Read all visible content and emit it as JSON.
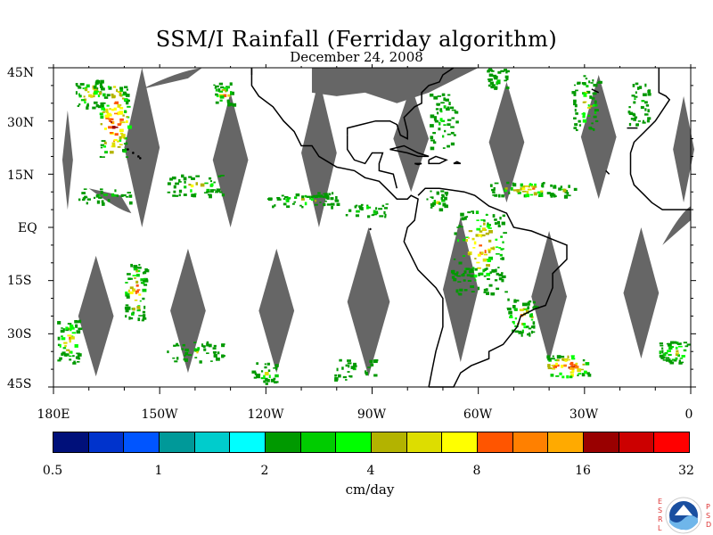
{
  "title": "SSM/I Rainfall (Ferriday algorithm)",
  "date": "December 24, 2008",
  "axes": {
    "lat_labels": [
      "45N",
      "30N",
      "15N",
      "EQ",
      "15S",
      "30S",
      "45S"
    ],
    "lon_labels": [
      "180E",
      "150W",
      "120W",
      "90W",
      "60W",
      "30W",
      "0"
    ]
  },
  "colorbar": {
    "units": "cm/day",
    "tick_labels": [
      "0.5",
      "1",
      "2",
      "4",
      "8",
      "16",
      "32"
    ],
    "colors": [
      "#00107a",
      "#0033cc",
      "#0055ff",
      "#009999",
      "#00cccc",
      "#00ffff",
      "#009900",
      "#00cc00",
      "#00ff00",
      "#b3b300",
      "#dddd00",
      "#ffff00",
      "#ff5500",
      "#ff8000",
      "#ffaa00",
      "#990000",
      "#cc0000",
      "#ff0000"
    ]
  },
  "map": {
    "region": "Western Hemisphere, 180E to 0, 45S to 45N",
    "no_data_color": "#666666",
    "coastline_color": "#000000"
  },
  "logo": {
    "left_letters": [
      "E",
      "S",
      "R",
      "L"
    ],
    "right_letters": [
      "P",
      "S",
      "D"
    ],
    "center_text": "NOAA"
  }
}
